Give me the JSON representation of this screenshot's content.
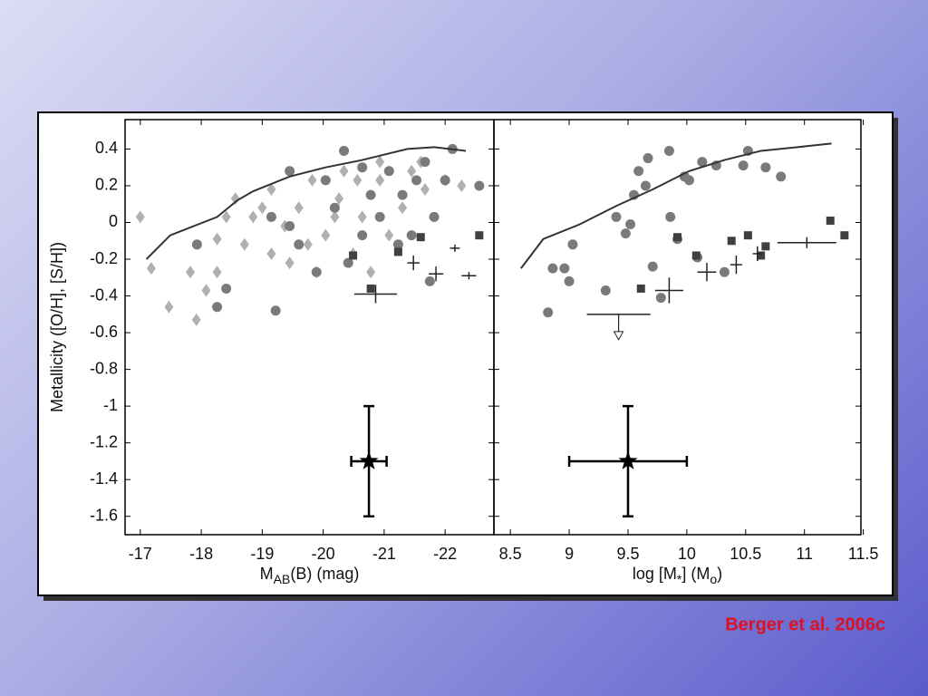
{
  "chart_data": [
    {
      "type": "scatter",
      "ylabel": "Metallicity  ([O/H], [S/H])",
      "xlabel": [
        {
          "text": "M"
        },
        {
          "text": "AB",
          "sub": true
        },
        {
          "text": "(B)  (mag)"
        }
      ],
      "xlim": [
        -16.75,
        -22.8
      ],
      "xticks": [
        -17,
        -18,
        -19,
        -20,
        -21,
        -22
      ],
      "ylim": [
        -1.7,
        0.56
      ],
      "yticks": [
        0.4,
        0.2,
        0,
        -0.2,
        -0.4,
        -0.6,
        -0.8,
        -1,
        -1.2,
        -1.4,
        -1.6
      ],
      "series": [
        {
          "marker": "diamond",
          "color": "#b0b0b0",
          "x": [
            -17.0,
            -17.18,
            -17.47,
            -17.92,
            -18.08,
            -17.82,
            -18.26,
            -18.41,
            -18.71,
            -19.0,
            -19.15,
            -19.37,
            -19.6,
            -19.82,
            -20.04,
            -20.26,
            -20.49,
            -20.64,
            -20.93,
            -21.08,
            -21.3,
            -21.6,
            -21.67,
            -22.0,
            -22.27,
            -18.85,
            -19.45,
            -19.89,
            -20.34,
            -20.78,
            -18.26,
            -18.56,
            -19.15,
            -19.75,
            -20.19,
            -20.56,
            -20.93,
            -21.45
          ],
          "values": [
            0.03,
            -0.25,
            -0.46,
            -0.53,
            -0.37,
            -0.27,
            -0.09,
            0.03,
            -0.12,
            0.08,
            -0.17,
            -0.02,
            0.08,
            0.23,
            -0.07,
            0.13,
            -0.17,
            0.03,
            0.23,
            -0.07,
            0.08,
            0.33,
            0.18,
            0.23,
            0.2,
            0.03,
            -0.22,
            -0.27,
            0.28,
            -0.27,
            -0.27,
            0.13,
            0.18,
            -0.12,
            0.03,
            0.23,
            0.33,
            0.28
          ]
        },
        {
          "marker": "circle",
          "color": "#7a7a7a",
          "x": [
            -19.45,
            -20.34,
            -20.64,
            -21.08,
            -21.53,
            -22.12,
            -22.56,
            -21.82,
            -21.23,
            -20.93,
            -20.64,
            -20.19,
            -19.89,
            -19.6,
            -19.15,
            -19.22,
            -18.26,
            -18.41,
            -17.93,
            -21.45,
            -21.75,
            -22.0,
            -20.04,
            -20.78,
            -21.3,
            -20.41,
            -19.45,
            -21.67
          ],
          "values": [
            0.28,
            0.39,
            0.3,
            0.28,
            0.23,
            0.4,
            0.2,
            0.03,
            -0.12,
            0.03,
            -0.07,
            0.08,
            -0.27,
            -0.12,
            0.03,
            -0.48,
            -0.46,
            -0.36,
            -0.12,
            -0.07,
            -0.32,
            0.23,
            0.23,
            0.15,
            0.15,
            -0.22,
            -0.02,
            0.33
          ]
        },
        {
          "marker": "square",
          "color": "#404040",
          "x": [
            -20.49,
            -20.78,
            -21.23,
            -21.6,
            -22.56
          ],
          "values": [
            -0.18,
            -0.36,
            -0.16,
            -0.08,
            -0.07
          ]
        },
        {
          "marker": "cross",
          "color": "#222222",
          "x": [
            -20.86,
            -21.48,
            -21.85,
            -22.16,
            -22.39
          ],
          "values": [
            -0.39,
            -0.22,
            -0.28,
            -0.14,
            -0.29
          ],
          "xerr": [
            0.35,
            0.1,
            0.12,
            0.08,
            0.12
          ],
          "yerr": [
            0.05,
            0.04,
            0.04,
            0.02,
            0.02
          ]
        },
        {
          "marker": "star",
          "color": "#000000",
          "x": [
            -20.75
          ],
          "values": [
            -1.3
          ],
          "xerr": [
            0.29
          ],
          "yerr": [
            0.3
          ]
        },
        {
          "marker": "line",
          "color": "#333333",
          "x": [
            -17.1,
            -17.49,
            -18.26,
            -18.59,
            -18.85,
            -19.45,
            -20.04,
            -20.64,
            -21.38,
            -21.82,
            -22.34
          ],
          "values": [
            -0.2,
            -0.07,
            0.03,
            0.12,
            0.17,
            0.25,
            0.3,
            0.34,
            0.4,
            0.41,
            0.39
          ]
        }
      ]
    },
    {
      "type": "scatter",
      "xlabel": [
        {
          "text": "log [M"
        },
        {
          "text": "*",
          "sub": true
        },
        {
          "text": "]  (M"
        },
        {
          "text": "o",
          "sub": true
        },
        {
          "text": ")"
        }
      ],
      "xlim": [
        8.36,
        11.48
      ],
      "xticks": [
        8.5,
        9,
        9.5,
        10,
        10.5,
        11,
        11.5
      ],
      "ylim": [
        -1.7,
        0.56
      ],
      "yticks": [
        0.4,
        0.2,
        0,
        -0.2,
        -0.4,
        -0.6,
        -0.8,
        -1,
        -1.2,
        -1.4,
        -1.6
      ],
      "series": [
        {
          "marker": "circle",
          "color": "#7a7a7a",
          "x": [
            8.82,
            8.86,
            8.96,
            9.03,
            9.0,
            9.31,
            9.4,
            9.48,
            9.55,
            9.59,
            9.65,
            9.67,
            9.85,
            9.86,
            9.92,
            9.71,
            9.78,
            9.98,
            10.09,
            10.13,
            10.25,
            10.32,
            10.52,
            10.48,
            10.67,
            10.8,
            10.02,
            9.52
          ],
          "values": [
            -0.49,
            -0.25,
            -0.25,
            -0.12,
            -0.32,
            -0.37,
            0.03,
            -0.06,
            0.15,
            0.28,
            0.2,
            0.35,
            0.39,
            0.03,
            -0.09,
            -0.24,
            -0.41,
            0.25,
            -0.19,
            0.33,
            0.31,
            -0.27,
            0.39,
            0.31,
            0.3,
            0.25,
            0.23,
            -0.01
          ]
        },
        {
          "marker": "square",
          "color": "#404040",
          "x": [
            9.61,
            9.92,
            10.08,
            10.38,
            10.52,
            10.63,
            10.67,
            11.22,
            11.34
          ],
          "values": [
            -0.36,
            -0.08,
            -0.18,
            -0.1,
            -0.07,
            -0.18,
            -0.13,
            0.01,
            -0.07
          ]
        },
        {
          "marker": "cross",
          "color": "#222222",
          "x": [
            9.85,
            10.17,
            10.42,
            10.6,
            11.02
          ],
          "values": [
            -0.37,
            -0.27,
            -0.23,
            -0.17,
            -0.11
          ],
          "xerr": [
            0.12,
            0.08,
            0.05,
            0.04,
            0.25
          ],
          "yerr": [
            0.07,
            0.05,
            0.05,
            0.04,
            0.03
          ]
        },
        {
          "marker": "upper-limit",
          "color": "#222222",
          "x": [
            9.42
          ],
          "values": [
            -0.5
          ],
          "xerr": [
            0.27
          ]
        },
        {
          "marker": "star",
          "color": "#000000",
          "x": [
            9.5
          ],
          "values": [
            -1.3
          ],
          "xerr": [
            0.5
          ],
          "yerr": [
            0.3
          ]
        },
        {
          "marker": "line",
          "color": "#333333",
          "x": [
            8.59,
            8.78,
            9.09,
            9.4,
            9.71,
            10.02,
            10.32,
            10.63,
            10.94,
            11.23
          ],
          "values": [
            -0.25,
            -0.09,
            -0.01,
            0.09,
            0.18,
            0.28,
            0.34,
            0.39,
            0.41,
            0.43
          ]
        }
      ]
    }
  ],
  "citation": "Berger et al. 2006c"
}
